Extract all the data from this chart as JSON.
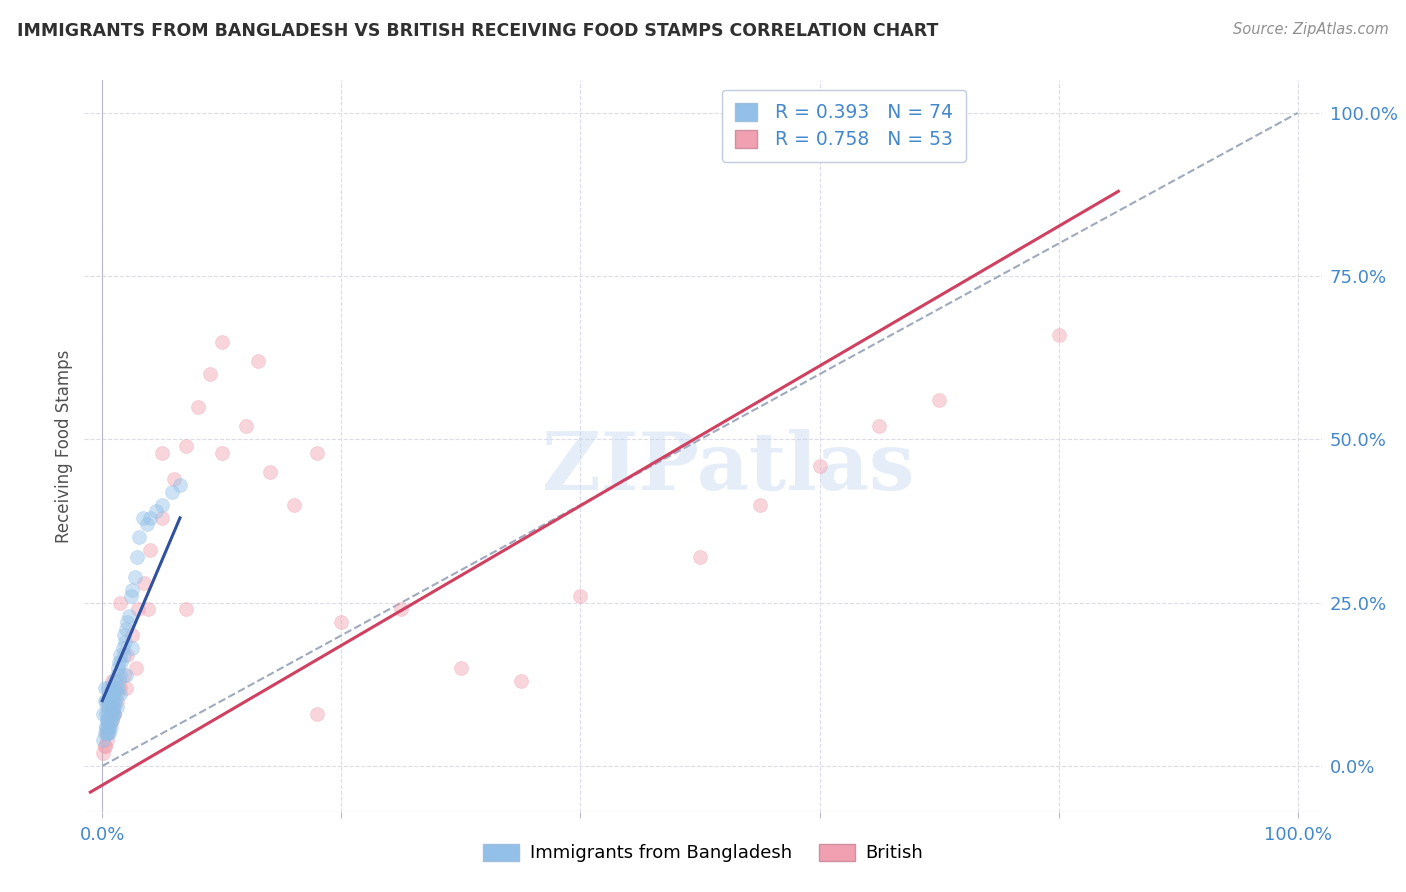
{
  "title": "IMMIGRANTS FROM BANGLADESH VS BRITISH RECEIVING FOOD STAMPS CORRELATION CHART",
  "source": "Source: ZipAtlas.com",
  "ylabel": "Receiving Food Stamps",
  "ytick_labels": [
    "0.0%",
    "25.0%",
    "50.0%",
    "75.0%",
    "100.0%"
  ],
  "ytick_values": [
    0.0,
    0.25,
    0.5,
    0.75,
    1.0
  ],
  "xtick_values": [
    0.0,
    0.2,
    0.4,
    0.6,
    0.8,
    1.0
  ],
  "xtick_labels": [
    "0.0%",
    "",
    "",
    "",
    "",
    "100.0%"
  ],
  "watermark": "ZIPatlas",
  "legend_blue_r": "R = 0.393",
  "legend_blue_n": "N = 74",
  "legend_pink_r": "R = 0.758",
  "legend_pink_n": "N = 53",
  "blue_color": "#92C0E8",
  "pink_color": "#F0A0B0",
  "blue_marker_edge": "#6090D0",
  "pink_marker_edge": "#D07090",
  "blue_line_color": "#3050A0",
  "pink_line_color": "#D04060",
  "dashed_line_color": "#A0AABE",
  "background_color": "#FFFFFF",
  "grid_color": "#DCDCE8",
  "title_color": "#303030",
  "source_color": "#909090",
  "axis_label_color": "#4488CC",
  "legend_text_color": "#4488CC",
  "legend_border_color": "#C0CCDD",
  "blue_scatter_x": [
    0.001,
    0.002,
    0.002,
    0.003,
    0.003,
    0.003,
    0.004,
    0.004,
    0.004,
    0.005,
    0.005,
    0.005,
    0.005,
    0.006,
    0.006,
    0.006,
    0.006,
    0.007,
    0.007,
    0.007,
    0.007,
    0.008,
    0.008,
    0.008,
    0.009,
    0.009,
    0.009,
    0.01,
    0.01,
    0.01,
    0.011,
    0.011,
    0.012,
    0.012,
    0.013,
    0.013,
    0.014,
    0.014,
    0.015,
    0.015,
    0.016,
    0.017,
    0.018,
    0.018,
    0.019,
    0.02,
    0.021,
    0.022,
    0.024,
    0.025,
    0.027,
    0.029,
    0.031,
    0.034,
    0.037,
    0.04,
    0.045,
    0.05,
    0.058,
    0.065,
    0.001,
    0.002,
    0.003,
    0.004,
    0.005,
    0.006,
    0.007,
    0.008,
    0.009,
    0.01,
    0.012,
    0.015,
    0.02,
    0.025
  ],
  "blue_scatter_y": [
    0.08,
    0.1,
    0.12,
    0.06,
    0.08,
    0.1,
    0.05,
    0.07,
    0.09,
    0.06,
    0.08,
    0.1,
    0.12,
    0.05,
    0.07,
    0.09,
    0.11,
    0.06,
    0.08,
    0.1,
    0.12,
    0.07,
    0.09,
    0.11,
    0.08,
    0.1,
    0.12,
    0.09,
    0.11,
    0.13,
    0.1,
    0.12,
    0.11,
    0.14,
    0.12,
    0.15,
    0.13,
    0.16,
    0.14,
    0.17,
    0.16,
    0.18,
    0.17,
    0.2,
    0.19,
    0.21,
    0.22,
    0.23,
    0.26,
    0.27,
    0.29,
    0.32,
    0.35,
    0.38,
    0.37,
    0.38,
    0.39,
    0.4,
    0.42,
    0.43,
    0.04,
    0.05,
    0.06,
    0.07,
    0.05,
    0.06,
    0.07,
    0.08,
    0.09,
    0.08,
    0.09,
    0.11,
    0.14,
    0.18
  ],
  "pink_scatter_x": [
    0.001,
    0.002,
    0.003,
    0.004,
    0.005,
    0.006,
    0.007,
    0.008,
    0.009,
    0.01,
    0.012,
    0.015,
    0.018,
    0.021,
    0.025,
    0.03,
    0.035,
    0.04,
    0.05,
    0.06,
    0.07,
    0.08,
    0.09,
    0.1,
    0.12,
    0.14,
    0.16,
    0.18,
    0.2,
    0.25,
    0.3,
    0.35,
    0.4,
    0.5,
    0.55,
    0.6,
    0.65,
    0.7,
    0.8,
    0.002,
    0.004,
    0.006,
    0.008,
    0.01,
    0.015,
    0.02,
    0.028,
    0.038,
    0.05,
    0.07,
    0.1,
    0.13,
    0.18
  ],
  "pink_scatter_y": [
    0.02,
    0.03,
    0.05,
    0.04,
    0.07,
    0.06,
    0.08,
    0.07,
    0.09,
    0.08,
    0.1,
    0.12,
    0.14,
    0.17,
    0.2,
    0.24,
    0.28,
    0.33,
    0.38,
    0.44,
    0.49,
    0.55,
    0.6,
    0.65,
    0.52,
    0.45,
    0.4,
    0.48,
    0.22,
    0.24,
    0.15,
    0.13,
    0.26,
    0.32,
    0.4,
    0.46,
    0.52,
    0.56,
    0.66,
    0.03,
    0.05,
    0.09,
    0.13,
    0.08,
    0.25,
    0.12,
    0.15,
    0.24,
    0.48,
    0.24,
    0.48,
    0.62,
    0.08
  ],
  "blue_line_x": [
    0.0,
    0.065
  ],
  "blue_line_y": [
    0.1,
    0.38
  ],
  "pink_line_x": [
    -0.01,
    0.85
  ],
  "pink_line_y": [
    -0.04,
    0.88
  ],
  "dashed_line_x": [
    0.0,
    1.0
  ],
  "dashed_line_y": [
    0.0,
    1.0
  ],
  "xlim": [
    -0.015,
    1.02
  ],
  "ylim": [
    -0.07,
    1.05
  ],
  "marker_size": 100,
  "marker_alpha": 0.45,
  "line_width": 2.2
}
